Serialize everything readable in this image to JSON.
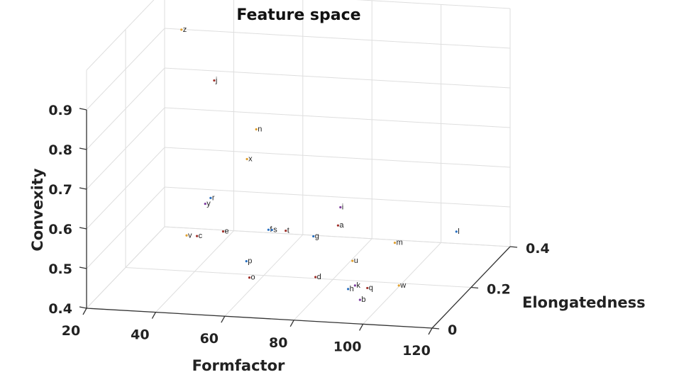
{
  "chart_data": {
    "type": "scatter",
    "projection": "3d",
    "title": "Feature space",
    "xlabel": "Formfactor",
    "ylabel": "Elongatedness",
    "zlabel": "Convexity",
    "xlim": [
      20,
      120
    ],
    "ylim": [
      0,
      0.4
    ],
    "zlim": [
      0.4,
      0.9
    ],
    "xticks": [
      "20",
      "40",
      "60",
      "80",
      "100",
      "120"
    ],
    "yticks": [
      "0",
      "0.2",
      "0.4"
    ],
    "zticks": [
      "0.4",
      "0.5",
      "0.6",
      "0.7",
      "0.8",
      "0.9"
    ],
    "grid": true,
    "points": [
      {
        "label": "z",
        "x": 26,
        "y": 0.38,
        "z": 0.91,
        "color": "#e0a030"
      },
      {
        "label": "j",
        "x": 40,
        "y": 0.3,
        "z": 0.83,
        "color": "#a0302a"
      },
      {
        "label": "n",
        "x": 55,
        "y": 0.25,
        "z": 0.74,
        "color": "#e0a030"
      },
      {
        "label": "x",
        "x": 54,
        "y": 0.22,
        "z": 0.68,
        "color": "#e0a030"
      },
      {
        "label": "r",
        "x": 48,
        "y": 0.14,
        "z": 0.62,
        "color": "#2a70c0"
      },
      {
        "label": "y",
        "x": 47,
        "y": 0.13,
        "z": 0.61,
        "color": "#8040a0"
      },
      {
        "label": "v",
        "x": 45,
        "y": 0.07,
        "z": 0.56,
        "color": "#e0a030"
      },
      {
        "label": "c",
        "x": 48,
        "y": 0.07,
        "z": 0.56,
        "color": "#a0302a"
      },
      {
        "label": "e",
        "x": 55,
        "y": 0.08,
        "z": 0.57,
        "color": "#a0302a"
      },
      {
        "label": "f",
        "x": 67,
        "y": 0.1,
        "z": 0.57,
        "color": "#2a70c0"
      },
      {
        "label": "s",
        "x": 68,
        "y": 0.1,
        "z": 0.57,
        "color": "#2a70c0"
      },
      {
        "label": "t",
        "x": 72,
        "y": 0.1,
        "z": 0.57,
        "color": "#a0302a"
      },
      {
        "label": "g",
        "x": 80,
        "y": 0.1,
        "z": 0.56,
        "color": "#2a70c0"
      },
      {
        "label": "i",
        "x": 85,
        "y": 0.15,
        "z": 0.61,
        "color": "#8040a0"
      },
      {
        "label": "a",
        "x": 86,
        "y": 0.12,
        "z": 0.58,
        "color": "#a0302a"
      },
      {
        "label": "p",
        "x": 64,
        "y": 0.04,
        "z": 0.52,
        "color": "#2a70c0"
      },
      {
        "label": "o",
        "x": 66,
        "y": 0.02,
        "z": 0.49,
        "color": "#a0302a"
      },
      {
        "label": "d",
        "x": 84,
        "y": 0.04,
        "z": 0.49,
        "color": "#a0302a"
      },
      {
        "label": "u",
        "x": 93,
        "y": 0.07,
        "z": 0.52,
        "color": "#e0a030"
      },
      {
        "label": "m",
        "x": 103,
        "y": 0.11,
        "z": 0.55,
        "color": "#e0a030"
      },
      {
        "label": "l",
        "x": 118,
        "y": 0.16,
        "z": 0.56,
        "color": "#2a70c0"
      },
      {
        "label": "h",
        "x": 94,
        "y": 0.03,
        "z": 0.47,
        "color": "#2a70c0"
      },
      {
        "label": "k",
        "x": 96,
        "y": 0.03,
        "z": 0.48,
        "color": "#8040a0"
      },
      {
        "label": "q",
        "x": 99,
        "y": 0.04,
        "z": 0.47,
        "color": "#a0302a"
      },
      {
        "label": "b",
        "x": 98,
        "y": 0.02,
        "z": 0.45,
        "color": "#8040a0"
      },
      {
        "label": "w",
        "x": 107,
        "y": 0.06,
        "z": 0.47,
        "color": "#e0a030"
      }
    ]
  }
}
